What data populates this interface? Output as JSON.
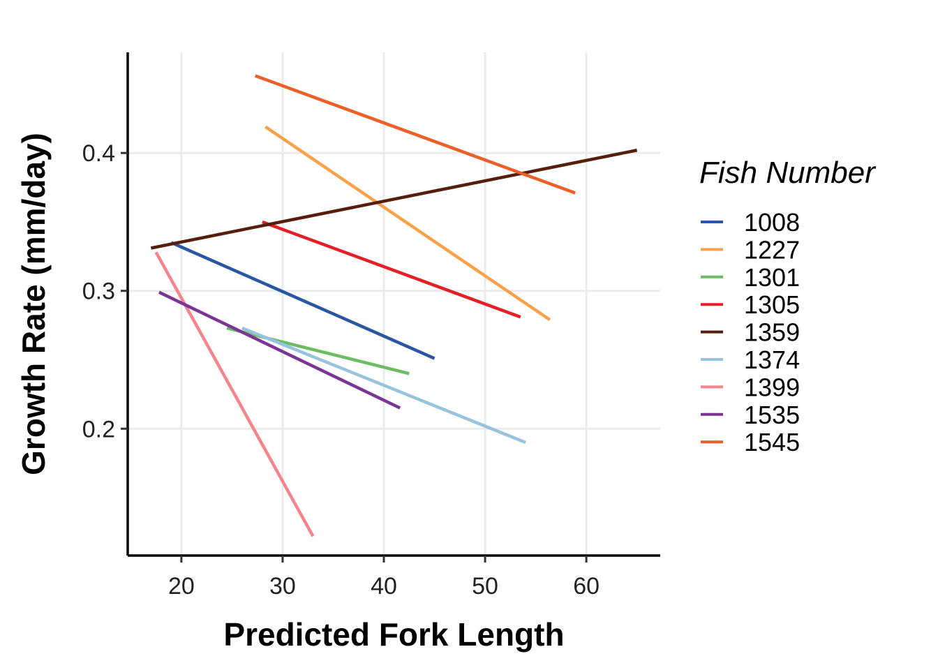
{
  "chart_data": {
    "type": "line",
    "xlabel": "Predicted Fork Length",
    "ylabel": "Growth Rate (mm/day)",
    "xlim": [
      14.7,
      67.3
    ],
    "ylim": [
      0.108,
      0.473
    ],
    "xticks": [
      20,
      30,
      40,
      50,
      60
    ],
    "yticks": [
      0.2,
      0.3,
      0.4
    ],
    "grid": true,
    "legend": {
      "title": "Fish Number",
      "placement": "right"
    },
    "series": [
      {
        "name": "1008",
        "color": "#2b56a3",
        "x": [
          19,
          45
        ],
        "y": [
          0.335,
          0.251
        ]
      },
      {
        "name": "1227",
        "color": "#f9a24b",
        "x": [
          28.3,
          56.4
        ],
        "y": [
          0.419,
          0.279
        ]
      },
      {
        "name": "1301",
        "color": "#6bbd64",
        "x": [
          24.5,
          42.5
        ],
        "y": [
          0.273,
          0.24
        ]
      },
      {
        "name": "1305",
        "color": "#e41f26",
        "x": [
          28,
          53.5
        ],
        "y": [
          0.35,
          0.281
        ]
      },
      {
        "name": "1359",
        "color": "#561e0f",
        "x": [
          17,
          65
        ],
        "y": [
          0.331,
          0.402
        ]
      },
      {
        "name": "1374",
        "color": "#98c3df",
        "x": [
          26,
          54
        ],
        "y": [
          0.273,
          0.19
        ]
      },
      {
        "name": "1399",
        "color": "#f5858a",
        "x": [
          17.5,
          33
        ],
        "y": [
          0.328,
          0.122
        ]
      },
      {
        "name": "1535",
        "color": "#7a3595",
        "x": [
          17.8,
          41.6
        ],
        "y": [
          0.299,
          0.215
        ]
      },
      {
        "name": "1545",
        "color": "#ea6028",
        "x": [
          27.3,
          58.9
        ],
        "y": [
          0.456,
          0.371
        ]
      }
    ]
  }
}
